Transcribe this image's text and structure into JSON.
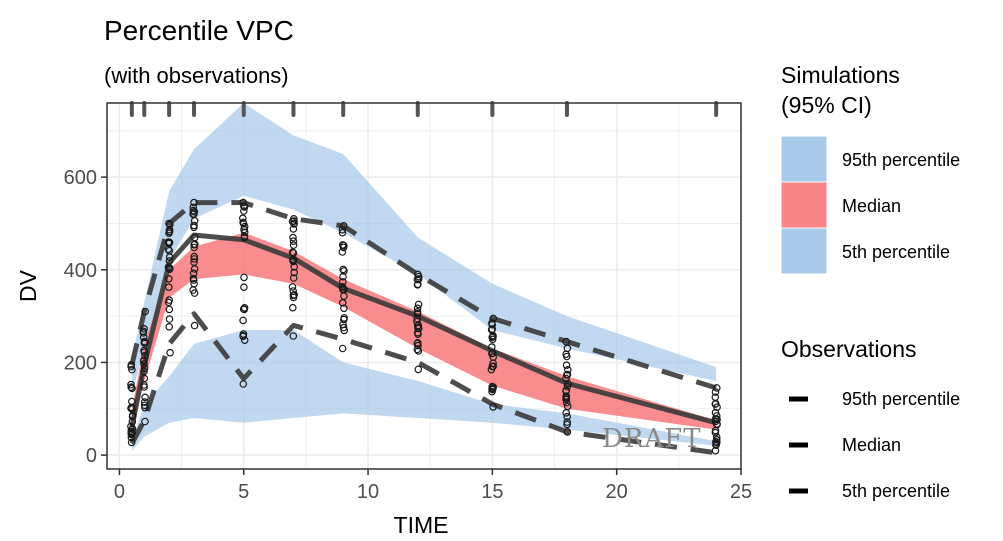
{
  "chart_data": {
    "type": "line",
    "title": "Percentile VPC",
    "subtitle": "(with observations)",
    "xlabel": "TIME",
    "ylabel": "DV",
    "xlim": [
      -0.5,
      25
    ],
    "ylim": [
      -30,
      760
    ],
    "x_ticks": [
      0,
      5,
      10,
      15,
      20,
      25
    ],
    "y_ticks": [
      0,
      200,
      400,
      600
    ],
    "grid": true,
    "legend_position": "right",
    "watermark": "DRAFT",
    "colors": {
      "ci_band_outer": "#9ec5e8",
      "ci_band_median": "#f7787a",
      "obs_line": "#3a3a3a",
      "points": "#1a1a1a",
      "panel_border": "#333333",
      "grid": "#ebebeb"
    },
    "bin_times": [
      0.5,
      1,
      2,
      3,
      5,
      7,
      9,
      12,
      15,
      18,
      24
    ],
    "simulations_ci": [
      {
        "name": "95th percentile",
        "x": [
          0.5,
          1,
          2,
          3,
          5,
          7,
          9,
          12,
          15,
          18,
          24
        ],
        "lower": [
          130,
          230,
          420,
          510,
          560,
          530,
          480,
          390,
          270,
          230,
          160
        ],
        "upper": [
          210,
          330,
          570,
          660,
          760,
          690,
          650,
          470,
          370,
          300,
          190
        ]
      },
      {
        "name": "Median",
        "x": [
          0.5,
          1,
          2,
          3,
          5,
          7,
          9,
          12,
          15,
          18,
          24
        ],
        "lower": [
          60,
          160,
          340,
          380,
          390,
          370,
          320,
          230,
          150,
          100,
          55
        ],
        "upper": [
          100,
          240,
          400,
          450,
          480,
          440,
          380,
          310,
          230,
          170,
          75
        ]
      },
      {
        "name": "5th percentile",
        "x": [
          0.5,
          1,
          2,
          3,
          5,
          7,
          9,
          12,
          15,
          18,
          24
        ],
        "lower": [
          10,
          40,
          70,
          80,
          70,
          80,
          90,
          80,
          70,
          55,
          20
        ],
        "upper": [
          30,
          110,
          170,
          240,
          270,
          270,
          200,
          160,
          110,
          90,
          30
        ]
      }
    ],
    "observations": [
      {
        "name": "95th percentile",
        "x": [
          0.5,
          1,
          2,
          3,
          5,
          7,
          9,
          12,
          15,
          18,
          24
        ],
        "y": [
          195,
          310,
          500,
          545,
          545,
          510,
          495,
          390,
          295,
          245,
          145
        ]
      },
      {
        "name": "Median",
        "x": [
          0.5,
          1,
          2,
          3,
          5,
          7,
          9,
          12,
          15,
          18,
          24
        ],
        "y": [
          60,
          195,
          415,
          475,
          465,
          425,
          360,
          300,
          225,
          155,
          70
        ]
      },
      {
        "name": "5th percentile",
        "x": [
          0.5,
          1,
          2,
          3,
          5,
          7,
          9,
          12,
          15,
          18,
          24
        ],
        "y": [
          25,
          75,
          240,
          305,
          165,
          280,
          250,
          200,
          110,
          50,
          5
        ]
      }
    ],
    "legend": {
      "simulations_title": "Simulations\n(95% CI)",
      "simulations_items": [
        "95th percentile",
        "Median",
        "5th percentile"
      ],
      "observations_title": "Observations",
      "observations_items": [
        "95th percentile",
        "Median",
        "5th percentile"
      ]
    }
  }
}
